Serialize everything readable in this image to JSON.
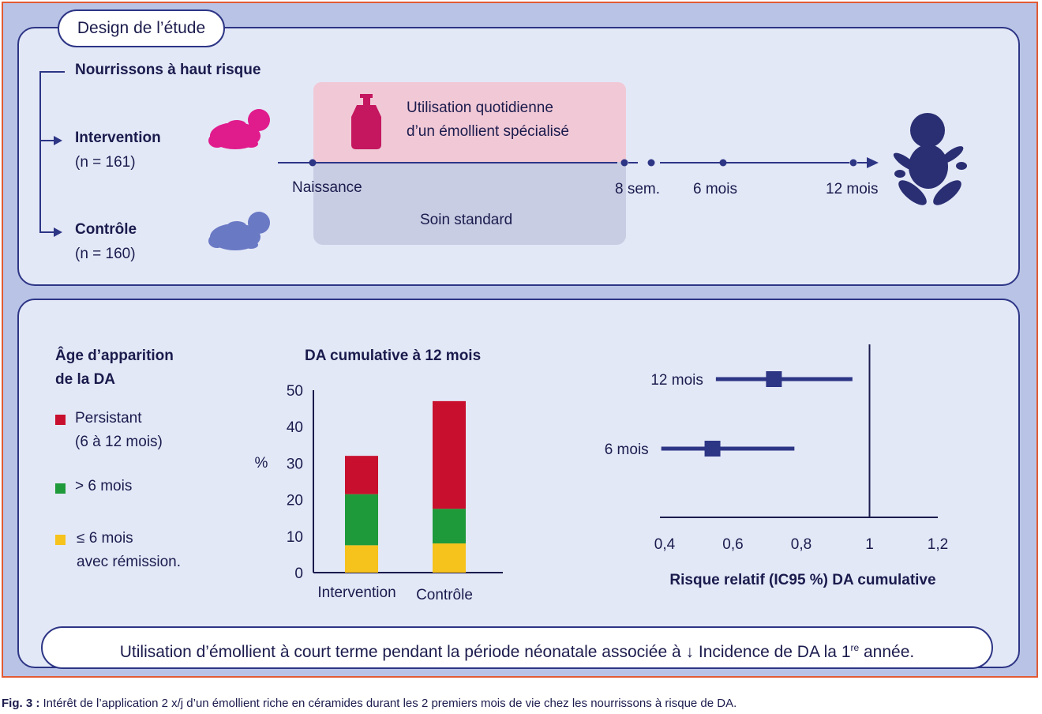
{
  "study_design": {
    "title": "Design de l’étude",
    "population": "Nourrissons à haut risque",
    "intervention": {
      "label": "Intervention",
      "n": "(n = 161)"
    },
    "control": {
      "label": "Contrôle",
      "n": "(n = 160)"
    },
    "emollient_line1": "Utilisation quotidienne",
    "emollient_line2": "d’un émollient spécialisé",
    "standard_care": "Soin standard",
    "timeline": {
      "birth": "Naissance",
      "week8": "8 sem.",
      "month6": "6 mois",
      "month12": "12 mois"
    }
  },
  "legend": {
    "title_line1": "Âge d’apparition",
    "title_line2": "de la DA",
    "persistent_line1": "Persistant",
    "persistent_line2": "(6 à 12 mois)",
    "over6": "> 6 mois",
    "under6_line1": "≤ 6 mois",
    "under6_line2": "avec rémission."
  },
  "colors": {
    "persistent": "#c8102e",
    "over6": "#1f9a3a",
    "under6": "#f6c21c",
    "navy": "#2d3585",
    "pink": "#e01b8c",
    "blue_baby": "#6a79c4",
    "bottle": "#c4175f"
  },
  "chart_data": [
    {
      "type": "bar",
      "stacked": true,
      "title": "DA cumulative à 12 mois",
      "ylabel": "%",
      "ylim": [
        0,
        50
      ],
      "yticks": [
        "0",
        "10",
        "20",
        "30",
        "40",
        "50"
      ],
      "categories": [
        "Intervention",
        "Contrôle"
      ],
      "series": [
        {
          "name": "≤ 6 mois avec rémission.",
          "values": [
            7.5,
            8
          ]
        },
        {
          "name": "> 6 mois",
          "values": [
            14,
            9.5
          ]
        },
        {
          "name": "Persistant (6 à 12 mois)",
          "values": [
            10.5,
            29.5
          ]
        }
      ]
    },
    {
      "type": "scatter",
      "xlabel": "Risque relatif (IC95 %) DA cumulative",
      "xlim": [
        0.4,
        1.2
      ],
      "xticks": [
        "0,4",
        "0,6",
        "0,8",
        "1",
        "1,2"
      ],
      "reference_line": 1,
      "rows": [
        {
          "label": "12 mois",
          "estimate": 0.72,
          "ci_low": 0.55,
          "ci_high": 0.95
        },
        {
          "label": "6 mois",
          "estimate": 0.54,
          "ci_low": 0.39,
          "ci_high": 0.78
        }
      ]
    }
  ],
  "conclusion": {
    "text_before": "Utilisation d’émollient à court terme pendant la période néonatale associée à ",
    "arrow": "↓",
    "text_middle": " Incidence de DA la 1",
    "superscript": "re",
    "text_after": " année."
  },
  "caption": {
    "label": "Fig. 3 :",
    "text": " Intérêt de l’application 2 x/j d’un émollient riche en céramides durant les 2 premiers mois de vie chez les nourrissons à risque de DA."
  }
}
